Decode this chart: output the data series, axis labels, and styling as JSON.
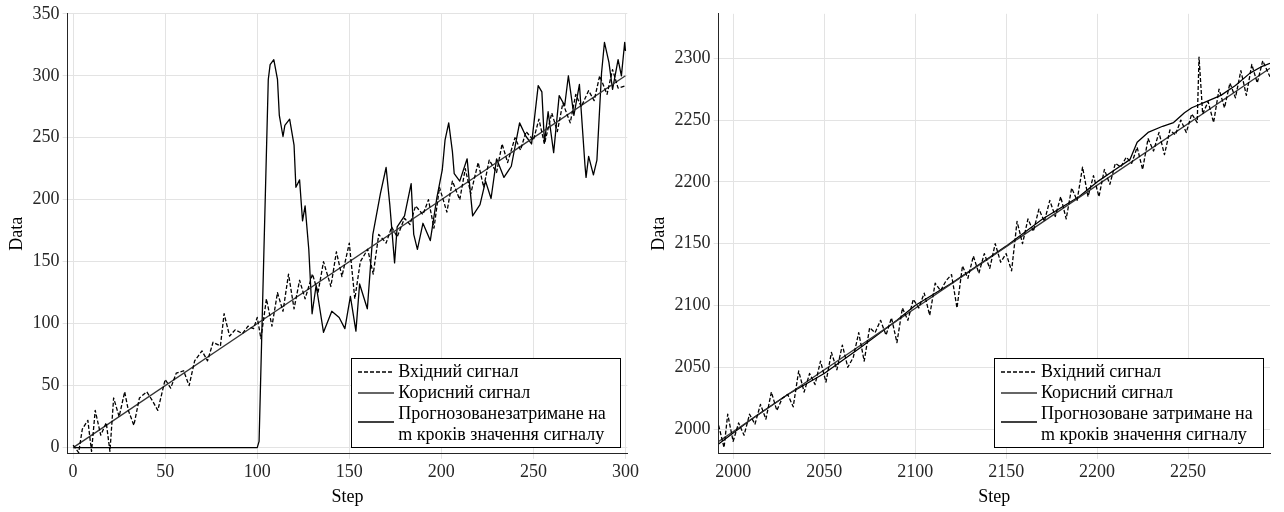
{
  "chart_data": [
    {
      "type": "line",
      "xlabel": "Step",
      "ylabel": "Data",
      "xlim": [
        -3,
        301
      ],
      "ylim": [
        -5,
        350
      ],
      "xticks": [
        0,
        50,
        100,
        150,
        200,
        250,
        300
      ],
      "yticks": [
        0,
        50,
        100,
        150,
        200,
        250,
        300,
        350
      ],
      "grid": true,
      "legend": "bottom right",
      "marker": "none",
      "series": [
        {
          "name": "Вхідний сигнал",
          "color": "#000000",
          "line_style": "dashed",
          "x": [
            0,
            3,
            5,
            8,
            10,
            12,
            15,
            18,
            20,
            22,
            25,
            28,
            30,
            33,
            36,
            40,
            43,
            46,
            50,
            53,
            56,
            60,
            63,
            66,
            70,
            73,
            76,
            80,
            82,
            85,
            88,
            92,
            95,
            98,
            100,
            102,
            105,
            108,
            111,
            114,
            117,
            120,
            123,
            126,
            130,
            133,
            136,
            140,
            143,
            146,
            150,
            153,
            156,
            160,
            163,
            166,
            170,
            173,
            176,
            180,
            183,
            186,
            190,
            193,
            196,
            199,
            203,
            206,
            210,
            213,
            216,
            220,
            223,
            226,
            230,
            233,
            236,
            240,
            243,
            246,
            250,
            253,
            256,
            260,
            263,
            266,
            270,
            273,
            276,
            280,
            283,
            286,
            290,
            293,
            296,
            300
          ],
          "values": [
            2,
            -4,
            15,
            22,
            -3,
            30,
            10,
            20,
            -3,
            40,
            25,
            45,
            30,
            18,
            40,
            45,
            38,
            30,
            55,
            48,
            60,
            62,
            50,
            70,
            78,
            70,
            85,
            82,
            108,
            90,
            95,
            92,
            98,
            96,
            105,
            88,
            120,
            98,
            125,
            110,
            140,
            112,
            135,
            120,
            140,
            125,
            150,
            130,
            158,
            138,
            165,
            120,
            150,
            160,
            140,
            172,
            165,
            178,
            170,
            185,
            180,
            195,
            188,
            200,
            177,
            210,
            190,
            215,
            200,
            225,
            205,
            230,
            210,
            232,
            222,
            245,
            230,
            250,
            240,
            255,
            248,
            265,
            245,
            270,
            255,
            278,
            262,
            285,
            275,
            288,
            280,
            300,
            285,
            305,
            290,
            292
          ]
        },
        {
          "name": "Корисний сигнал",
          "color": "#333333",
          "line_style": "solid",
          "x": [
            0,
            300
          ],
          "values": [
            0,
            300
          ]
        },
        {
          "name": "Прогнозованезатримане на m кроків значення сигналу",
          "color": "#000000",
          "line_style": "solid",
          "x": [
            0,
            100,
            101,
            106,
            107,
            109,
            111,
            112,
            114,
            115,
            117.6,
            120,
            121,
            123,
            124.6,
            126,
            128,
            129.8,
            132,
            136,
            140.5,
            144.5,
            147.6,
            150.6,
            153.6,
            155.6,
            159.8,
            162.8,
            166.9,
            170,
            172,
            174.6,
            176,
            180,
            183.6,
            185,
            187,
            190,
            194,
            197.5,
            200.5,
            202,
            204,
            206,
            207,
            210,
            214,
            217,
            221,
            224,
            227,
            230,
            234,
            238,
            242.5,
            246,
            249,
            252.6,
            254.6,
            256,
            258,
            261,
            264,
            267,
            269,
            272,
            275,
            278,
            278.6,
            280,
            282.6,
            284.5,
            287,
            288.6,
            291,
            293,
            296,
            297.8,
            299.6,
            300
          ],
          "values": [
            0,
            0,
            5,
            297,
            309,
            313,
            297,
            268,
            251,
            260,
            265,
            244,
            210,
            216,
            183,
            195,
            160,
            108,
            131,
            93,
            110,
            105,
            96,
            122,
            94,
            132,
            112,
            172,
            205,
            226,
            196,
            149,
            178,
            187,
            213,
            172,
            160,
            181,
            167,
            201,
            224,
            248,
            262,
            239,
            221,
            215,
            233,
            187,
            196,
            215,
            201,
            233,
            218,
            227,
            262,
            251,
            245,
            292,
            287,
            246,
            271,
            238,
            284,
            276,
            300,
            268,
            293,
            228,
            218,
            235,
            220,
            232,
            302,
            327,
            311,
            289,
            313,
            300,
            327,
            320
          ]
        }
      ]
    },
    {
      "type": "line",
      "xlabel": "Step",
      "ylabel": "Data",
      "xlim": [
        1992,
        2295
      ],
      "ylim": [
        1980,
        2336
      ],
      "xticks": [
        2000,
        2050,
        2100,
        2150,
        2200,
        2250
      ],
      "yticks": [
        2000,
        2050,
        2100,
        2150,
        2200,
        2250,
        2300
      ],
      "grid": true,
      "legend": "bottom right",
      "marker": "none",
      "series": [
        {
          "name": "Вхідний сигнал",
          "color": "#000000",
          "line_style": "dashed",
          "x": [
            1992,
            1995,
            1997,
            2000,
            2003,
            2006,
            2009,
            2012,
            2015,
            2018,
            2021,
            2024,
            2027,
            2030,
            2033,
            2036,
            2039,
            2042,
            2045,
            2048,
            2051,
            2054,
            2057,
            2060,
            2063,
            2066,
            2069,
            2072,
            2075,
            2078,
            2081,
            2084,
            2087,
            2090,
            2093,
            2096,
            2099,
            2102,
            2105,
            2108,
            2111,
            2114,
            2117,
            2120,
            2123,
            2126,
            2129,
            2132,
            2135,
            2138,
            2141,
            2144,
            2147,
            2150,
            2153,
            2156,
            2159,
            2162,
            2165,
            2168,
            2171,
            2174,
            2177,
            2180,
            2183,
            2186,
            2189,
            2192,
            2195,
            2198,
            2201,
            2204,
            2207,
            2210,
            2213,
            2216,
            2219,
            2222,
            2225,
            2228,
            2231,
            2234,
            2237,
            2240,
            2243,
            2246,
            2249,
            2252,
            2255,
            2256,
            2258,
            2261,
            2264,
            2267,
            2270,
            2273,
            2276,
            2279,
            2282,
            2285,
            2288,
            2291,
            2295
          ],
          "values": [
            2003,
            1985,
            2012,
            1990,
            2005,
            1995,
            2012,
            2004,
            2020,
            2008,
            2030,
            2015,
            2025,
            2028,
            2018,
            2047,
            2030,
            2045,
            2036,
            2055,
            2038,
            2062,
            2048,
            2068,
            2050,
            2058,
            2078,
            2055,
            2082,
            2078,
            2088,
            2076,
            2090,
            2070,
            2098,
            2088,
            2105,
            2098,
            2110,
            2092,
            2118,
            2112,
            2120,
            2125,
            2098,
            2132,
            2122,
            2140,
            2126,
            2142,
            2130,
            2150,
            2135,
            2142,
            2128,
            2168,
            2150,
            2170,
            2160,
            2178,
            2168,
            2185,
            2172,
            2188,
            2170,
            2195,
            2185,
            2212,
            2188,
            2205,
            2188,
            2210,
            2198,
            2215,
            2212,
            2220,
            2215,
            2228,
            2210,
            2235,
            2225,
            2240,
            2222,
            2242,
            2238,
            2250,
            2240,
            2255,
            2248,
            2301,
            2255,
            2265,
            2248,
            2275,
            2260,
            2280,
            2268,
            2290,
            2270,
            2295,
            2280,
            2298,
            2285
          ]
        },
        {
          "name": "Корисний сигнал",
          "color": "#333333",
          "line_style": "solid",
          "x": [
            1992,
            2295
          ],
          "values": [
            1990,
            2292
          ]
        },
        {
          "name": "Прогнозоване затримане на m кроків значення сигналу",
          "color": "#000000",
          "line_style": "solid",
          "x": [
            1992,
            2010,
            2030,
            2050,
            2070,
            2090,
            2100,
            2120,
            2140,
            2150,
            2170,
            2190,
            2200,
            2210,
            2218,
            2222,
            2228,
            2236,
            2242,
            2248,
            2252,
            2260,
            2268,
            2276,
            2284,
            2290,
            2295
          ],
          "values": [
            1988,
            2008,
            2028,
            2045,
            2066,
            2088,
            2100,
            2118,
            2138,
            2148,
            2170,
            2188,
            2200,
            2210,
            2218,
            2232,
            2240,
            2245,
            2248,
            2256,
            2260,
            2265,
            2270,
            2278,
            2288,
            2293,
            2296
          ]
        }
      ]
    }
  ]
}
